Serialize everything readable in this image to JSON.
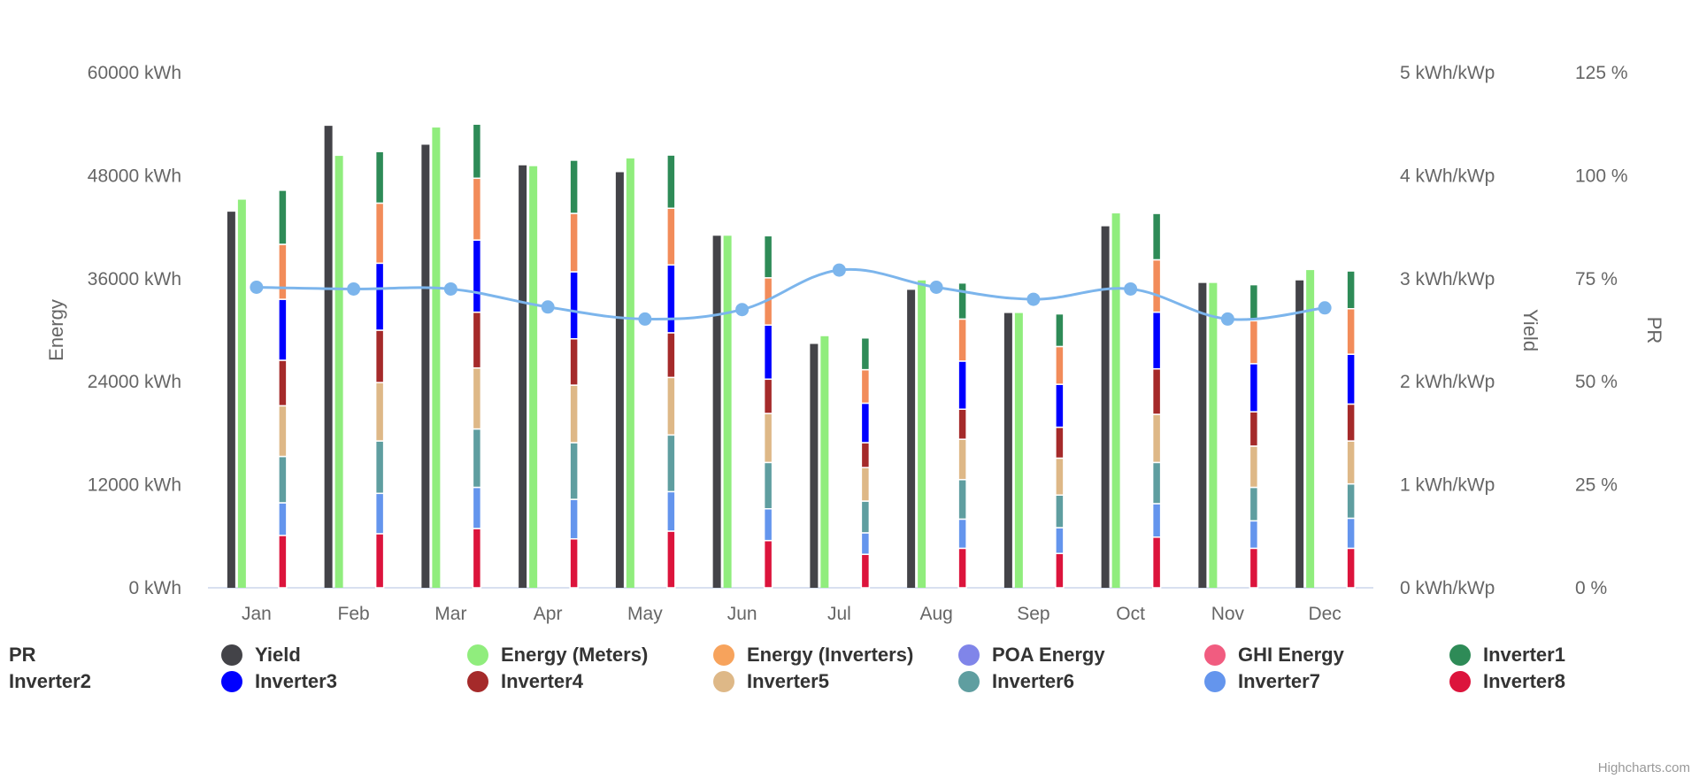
{
  "chart_data": {
    "type": "bar",
    "categories": [
      "Jan",
      "Feb",
      "Mar",
      "Apr",
      "May",
      "Jun",
      "Jul",
      "Aug",
      "Sep",
      "Oct",
      "Nov",
      "Dec"
    ],
    "axes": {
      "left": {
        "title": "Energy",
        "ticks": [
          "0 kWh",
          "12000 kWh",
          "24000 kWh",
          "36000 kWh",
          "48000 kWh",
          "60000 kWh"
        ],
        "range": [
          0,
          60000
        ]
      },
      "right1": {
        "title": "Yield",
        "ticks": [
          "0 kWh/kWp",
          "1 kWh/kWp",
          "2 kWh/kWp",
          "3 kWh/kWp",
          "4 kWh/kWp",
          "5 kWh/kWp"
        ],
        "range": [
          0,
          5
        ]
      },
      "right2": {
        "title": "PR",
        "ticks": [
          "0 %",
          "25 %",
          "50 %",
          "75 %",
          "100 %",
          "125 %"
        ],
        "range": [
          0,
          125
        ]
      }
    },
    "series": [
      {
        "name": "Yield",
        "axis": "Energy",
        "values": [
          43800,
          53800,
          51600,
          49200,
          48400,
          41000,
          28400,
          34700,
          32000,
          42100,
          35500,
          35800
        ]
      },
      {
        "name": "Energy (Meters)",
        "axis": "Energy",
        "values": [
          45200,
          50300,
          53600,
          49100,
          50000,
          41000,
          29300,
          35800,
          32000,
          43600,
          35500,
          37000
        ]
      },
      {
        "name": "Inverter8",
        "stack": "inverters",
        "values": [
          6100,
          6300,
          6900,
          5700,
          6600,
          5500,
          3900,
          4600,
          4000,
          5900,
          4600,
          4600
        ]
      },
      {
        "name": "Inverter7",
        "stack": "inverters",
        "values": [
          3800,
          4700,
          4800,
          4600,
          4600,
          3700,
          2500,
          3400,
          3000,
          3900,
          3200,
          3500
        ]
      },
      {
        "name": "Inverter6",
        "stack": "inverters",
        "values": [
          5400,
          6100,
          6800,
          6600,
          6600,
          5400,
          3700,
          4600,
          3800,
          4800,
          3900,
          4000
        ]
      },
      {
        "name": "Inverter5",
        "stack": "inverters",
        "values": [
          5900,
          6800,
          7100,
          6700,
          6700,
          5700,
          3900,
          4700,
          4300,
          5600,
          4800,
          5000
        ]
      },
      {
        "name": "Inverter4",
        "stack": "inverters",
        "values": [
          5300,
          6100,
          6500,
          5400,
          5200,
          4000,
          2900,
          3500,
          3600,
          5300,
          4000,
          4300
        ]
      },
      {
        "name": "Inverter3",
        "stack": "inverters",
        "values": [
          7100,
          7800,
          8400,
          7800,
          7900,
          6300,
          4600,
          5600,
          5000,
          6600,
          5600,
          5800
        ]
      },
      {
        "name": "Energy (Inverters)",
        "stack": "inverters",
        "values": [
          6400,
          7000,
          7200,
          6800,
          6600,
          5500,
          3900,
          4900,
          4400,
          6100,
          5000,
          5300
        ]
      },
      {
        "name": "Inverter1",
        "stack": "inverters",
        "values": [
          6300,
          6000,
          6300,
          6200,
          6200,
          4900,
          3700,
          4200,
          3800,
          5400,
          4200,
          4400
        ]
      },
      {
        "name": "PR",
        "type": "spline",
        "axis": "Energy",
        "values": [
          35000,
          34800,
          34800,
          32700,
          31300,
          32400,
          37000,
          35000,
          33600,
          34800,
          31300,
          32600
        ]
      }
    ]
  },
  "colors": {
    "Yield": "#434348",
    "Energy (Meters)": "#90ed7d",
    "Energy (Inverters)": "#f7a35c",
    "Energy (Inverters) stacked": "#f28c5a",
    "POA Energy": "#8085e9",
    "GHI Energy": "#f15c80",
    "Inverter1": "#2e8b57",
    "Inverter2": "#333333",
    "Inverter3": "#0000ff",
    "Inverter4": "#a52a2a",
    "Inverter5": "#deb887",
    "Inverter6": "#5f9ea0",
    "Inverter7": "#6495ed",
    "Inverter8": "#dc143c",
    "PR": "#7cb5ec"
  },
  "legend": [
    {
      "label": "PR",
      "color": "",
      "row": 0,
      "col": 0
    },
    {
      "label": "Yield",
      "color": "#434348",
      "row": 0,
      "col": 1
    },
    {
      "label": "Energy (Meters)",
      "color": "#90ed7d",
      "row": 0,
      "col": 2
    },
    {
      "label": "Energy (Inverters)",
      "color": "#f7a35c",
      "row": 0,
      "col": 3
    },
    {
      "label": "POA Energy",
      "color": "#8085e9",
      "row": 0,
      "col": 4
    },
    {
      "label": "GHI Energy",
      "color": "#f15c80",
      "row": 0,
      "col": 5
    },
    {
      "label": "Inverter1",
      "color": "#2e8b57",
      "row": 0,
      "col": 6
    },
    {
      "label": "Inverter2",
      "color": "",
      "row": 1,
      "col": 0
    },
    {
      "label": "Inverter3",
      "color": "#0000ff",
      "row": 1,
      "col": 1
    },
    {
      "label": "Inverter4",
      "color": "#a52a2a",
      "row": 1,
      "col": 2
    },
    {
      "label": "Inverter5",
      "color": "#deb887",
      "row": 1,
      "col": 3
    },
    {
      "label": "Inverter6",
      "color": "#5f9ea0",
      "row": 1,
      "col": 4
    },
    {
      "label": "Inverter7",
      "color": "#6495ed",
      "row": 1,
      "col": 5
    },
    {
      "label": "Inverter8",
      "color": "#dc143c",
      "row": 1,
      "col": 6
    }
  ],
  "credits": "Highcharts.com"
}
